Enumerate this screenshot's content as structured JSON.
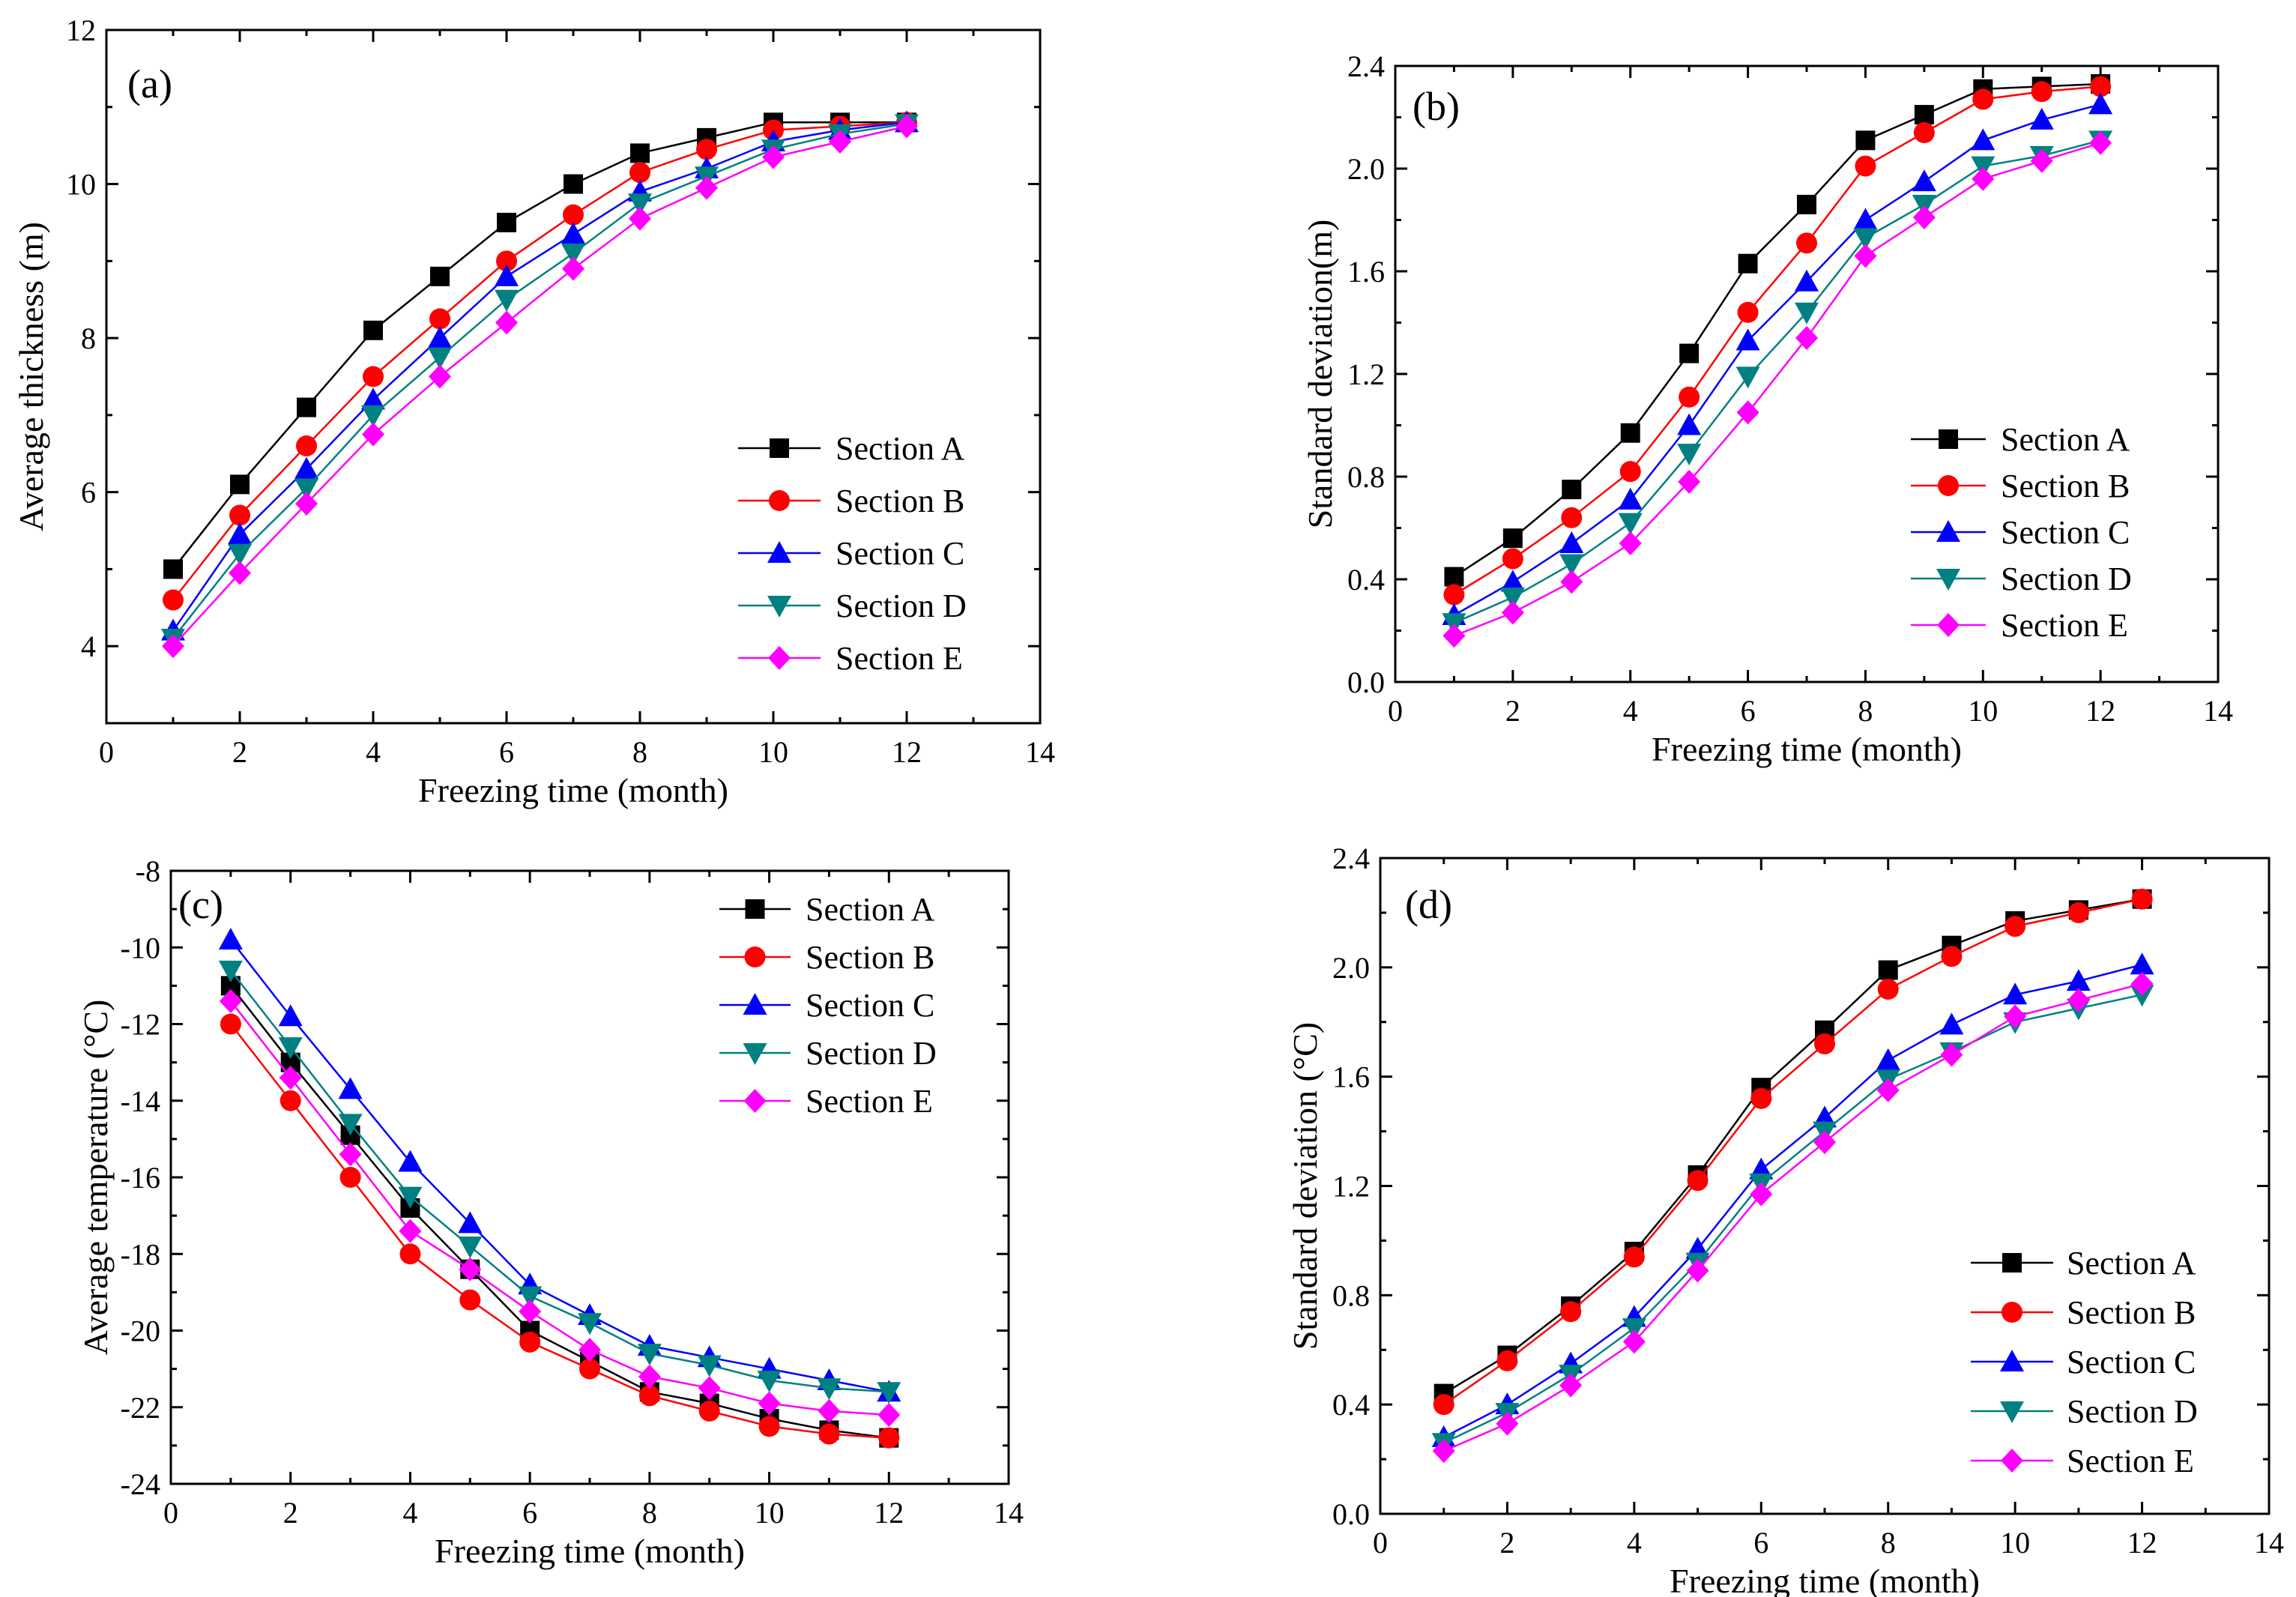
{
  "colors": {
    "Section A": "#000000",
    "Section B": "#ff0000",
    "Section C": "#0000ff",
    "Section D": "#008080",
    "Section E": "#ff00ff"
  },
  "markers": {
    "Section A": "square",
    "Section B": "circle",
    "Section C": "triangle-up",
    "Section D": "triangle-down",
    "Section E": "diamond"
  },
  "chart_data": [
    {
      "id": "a",
      "panel_label": "(a)",
      "type": "line",
      "xlabel": "Freezing time (month)",
      "ylabel": "Average thickness (m)",
      "xlim": [
        0,
        14
      ],
      "ylim": [
        3,
        12
      ],
      "xticks": [
        "0",
        "2",
        "4",
        "6",
        "8",
        "10",
        "12",
        "14"
      ],
      "xtick_values": [
        0,
        2,
        4,
        6,
        8,
        10,
        12,
        14
      ],
      "yticks": [
        "4",
        "6",
        "8",
        "10",
        "12"
      ],
      "ytick_values": [
        4,
        6,
        8,
        10,
        12
      ],
      "legend_position": "lower-right",
      "x": [
        1,
        2,
        3,
        4,
        5,
        6,
        7,
        8,
        9,
        10,
        11,
        12
      ],
      "series": [
        {
          "name": "Section A",
          "values": [
            5.0,
            6.1,
            7.1,
            8.1,
            8.8,
            9.5,
            10.0,
            10.4,
            10.6,
            10.8,
            10.8,
            10.8
          ]
        },
        {
          "name": "Section B",
          "values": [
            4.6,
            5.7,
            6.6,
            7.5,
            8.25,
            9.0,
            9.6,
            10.15,
            10.45,
            10.7,
            10.75,
            10.8
          ]
        },
        {
          "name": "Section C",
          "values": [
            4.2,
            5.45,
            6.3,
            7.2,
            8.0,
            8.8,
            9.35,
            9.9,
            10.2,
            10.55,
            10.7,
            10.8
          ]
        },
        {
          "name": "Section D",
          "values": [
            4.1,
            5.2,
            6.05,
            7.0,
            7.75,
            8.5,
            9.1,
            9.75,
            10.1,
            10.45,
            10.65,
            10.78
          ]
        },
        {
          "name": "Section E",
          "values": [
            4.0,
            4.95,
            5.85,
            6.75,
            7.5,
            8.2,
            8.9,
            9.55,
            9.95,
            10.35,
            10.55,
            10.75
          ]
        }
      ]
    },
    {
      "id": "b",
      "panel_label": "(b)",
      "type": "line",
      "xlabel": "Freezing time (month)",
      "ylabel": "Standard deviation(m)",
      "xlim": [
        0,
        14
      ],
      "ylim": [
        0,
        2.4
      ],
      "xticks": [
        "0",
        "2",
        "4",
        "6",
        "8",
        "10",
        "12",
        "14"
      ],
      "xtick_values": [
        0,
        2,
        4,
        6,
        8,
        10,
        12,
        14
      ],
      "yticks": [
        "0.0",
        "0.4",
        "0.8",
        "1.2",
        "1.6",
        "2.0",
        "2.4"
      ],
      "ytick_values": [
        0,
        0.4,
        0.8,
        1.2,
        1.6,
        2.0,
        2.4
      ],
      "legend_position": "lower-right",
      "x": [
        1,
        2,
        3,
        4,
        5,
        6,
        7,
        8,
        9,
        10,
        11,
        12
      ],
      "series": [
        {
          "name": "Section A",
          "values": [
            0.41,
            0.56,
            0.75,
            0.97,
            1.28,
            1.63,
            1.86,
            2.11,
            2.21,
            2.31,
            2.32,
            2.33
          ]
        },
        {
          "name": "Section B",
          "values": [
            0.34,
            0.48,
            0.64,
            0.82,
            1.11,
            1.44,
            1.71,
            2.01,
            2.14,
            2.27,
            2.3,
            2.32
          ]
        },
        {
          "name": "Section C",
          "values": [
            0.26,
            0.39,
            0.54,
            0.71,
            1.0,
            1.33,
            1.56,
            1.8,
            1.95,
            2.11,
            2.19,
            2.25
          ]
        },
        {
          "name": "Section D",
          "values": [
            0.23,
            0.33,
            0.46,
            0.62,
            0.89,
            1.19,
            1.44,
            1.73,
            1.86,
            2.01,
            2.05,
            2.11
          ]
        },
        {
          "name": "Section E",
          "values": [
            0.18,
            0.27,
            0.39,
            0.54,
            0.78,
            1.05,
            1.34,
            1.66,
            1.81,
            1.96,
            2.03,
            2.1
          ]
        }
      ]
    },
    {
      "id": "c",
      "panel_label": "(c)",
      "type": "line",
      "xlabel": "Freezing time (month)",
      "ylabel": "Average temperature (°C)",
      "xlim": [
        0,
        14
      ],
      "ylim": [
        -24,
        -8
      ],
      "xticks": [
        "0",
        "2",
        "4",
        "6",
        "8",
        "10",
        "12",
        "14"
      ],
      "xtick_values": [
        0,
        2,
        4,
        6,
        8,
        10,
        12,
        14
      ],
      "yticks": [
        "-24",
        "-22",
        "-20",
        "-18",
        "-16",
        "-14",
        "-12",
        "-10",
        "-8"
      ],
      "ytick_values": [
        -24,
        -22,
        -20,
        -18,
        -16,
        -14,
        -12,
        -10,
        -8
      ],
      "legend_position": "upper-right",
      "x": [
        1,
        2,
        3,
        4,
        5,
        6,
        7,
        8,
        9,
        10,
        11,
        12
      ],
      "series": [
        {
          "name": "Section A",
          "values": [
            -11.0,
            -13.0,
            -14.9,
            -16.8,
            -18.4,
            -20.0,
            -20.8,
            -21.6,
            -21.9,
            -22.3,
            -22.6,
            -22.8
          ]
        },
        {
          "name": "Section B",
          "values": [
            -12.0,
            -14.0,
            -16.0,
            -18.0,
            -19.2,
            -20.3,
            -21.0,
            -21.7,
            -22.1,
            -22.5,
            -22.7,
            -22.8
          ]
        },
        {
          "name": "Section C",
          "values": [
            -9.8,
            -11.8,
            -13.7,
            -15.6,
            -17.2,
            -18.8,
            -19.6,
            -20.4,
            -20.7,
            -21.0,
            -21.3,
            -21.6
          ]
        },
        {
          "name": "Section D",
          "values": [
            -10.6,
            -12.6,
            -14.6,
            -16.5,
            -17.8,
            -19.1,
            -19.8,
            -20.6,
            -20.9,
            -21.3,
            -21.5,
            -21.6
          ]
        },
        {
          "name": "Section E",
          "values": [
            -11.4,
            -13.4,
            -15.4,
            -17.4,
            -18.4,
            -19.5,
            -20.5,
            -21.2,
            -21.5,
            -21.9,
            -22.1,
            -22.2
          ]
        }
      ]
    },
    {
      "id": "d",
      "panel_label": "(d)",
      "type": "line",
      "xlabel": "Freezing time (month)",
      "ylabel": "Standard deviation (°C)",
      "xlim": [
        0,
        14
      ],
      "ylim": [
        0,
        2.4
      ],
      "xticks": [
        "0",
        "2",
        "4",
        "6",
        "8",
        "10",
        "12",
        "14"
      ],
      "xtick_values": [
        0,
        2,
        4,
        6,
        8,
        10,
        12,
        14
      ],
      "yticks": [
        "0.0",
        "0.4",
        "0.8",
        "1.2",
        "1.6",
        "2.0",
        "2.4"
      ],
      "ytick_values": [
        0,
        0.4,
        0.8,
        1.2,
        1.6,
        2.0,
        2.4
      ],
      "legend_position": "lower-right",
      "x": [
        1,
        2,
        3,
        4,
        5,
        6,
        7,
        8,
        9,
        10,
        11,
        12
      ],
      "series": [
        {
          "name": "Section A",
          "values": [
            0.44,
            0.58,
            0.76,
            0.96,
            1.24,
            1.56,
            1.77,
            1.99,
            2.08,
            2.17,
            2.21,
            2.25
          ]
        },
        {
          "name": "Section B",
          "values": [
            0.4,
            0.56,
            0.74,
            0.94,
            1.22,
            1.52,
            1.72,
            1.92,
            2.04,
            2.15,
            2.2,
            2.25
          ]
        },
        {
          "name": "Section C",
          "values": [
            0.28,
            0.4,
            0.55,
            0.72,
            0.97,
            1.26,
            1.45,
            1.66,
            1.79,
            1.9,
            1.95,
            2.01
          ]
        },
        {
          "name": "Section D",
          "values": [
            0.26,
            0.37,
            0.51,
            0.68,
            0.92,
            1.21,
            1.4,
            1.59,
            1.69,
            1.8,
            1.85,
            1.9
          ]
        },
        {
          "name": "Section E",
          "values": [
            0.23,
            0.33,
            0.47,
            0.63,
            0.89,
            1.17,
            1.36,
            1.55,
            1.68,
            1.82,
            1.88,
            1.94
          ]
        }
      ]
    }
  ]
}
